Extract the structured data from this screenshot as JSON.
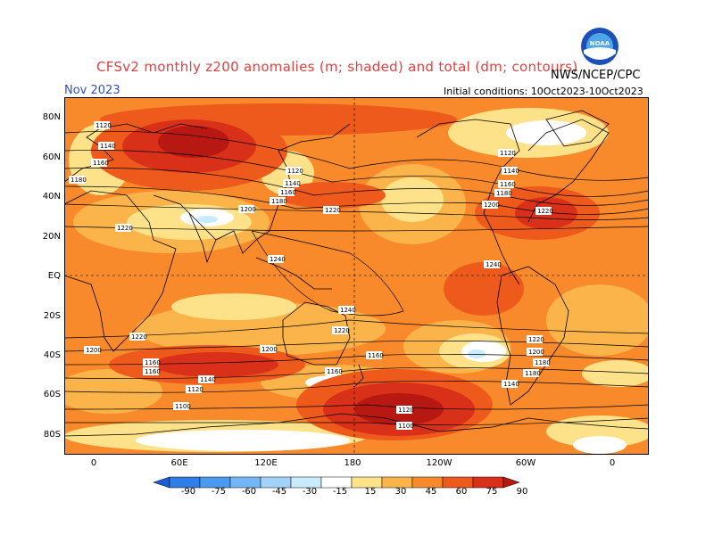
{
  "title": "CFSv2 monthly z200 anomalies (m; shaded) and total (dm; contours)",
  "agency": "NWS/NCEP/CPC",
  "logo_text": "NOAA",
  "forecast_month": "Nov 2023",
  "initial_conditions": "Initial conditions: 10Oct2023-10Oct2023",
  "y_axis_labels": [
    "80N",
    "60N",
    "40N",
    "20N",
    "EQ",
    "20S",
    "40S",
    "60S",
    "80S"
  ],
  "x_axis_labels": [
    "0",
    "60E",
    "120E",
    "180",
    "120W",
    "60W",
    "0"
  ],
  "colorbar": {
    "labels": [
      "-90",
      "-75",
      "-60",
      "-45",
      "-30",
      "-15",
      "15",
      "30",
      "45",
      "60",
      "75",
      "90"
    ],
    "colors": [
      "#1a5fd6",
      "#2f7ee8",
      "#4a9af0",
      "#73b5f5",
      "#a2d2fa",
      "#c9ecfc",
      "#ffffff",
      "#fde28a",
      "#fbb44a",
      "#f98a2b",
      "#ee5a1c",
      "#d9301a",
      "#b81812"
    ]
  },
  "contour_labels": [
    "1120",
    "1140",
    "1160",
    "1180",
    "1200",
    "1220",
    "1240",
    "1100"
  ],
  "colors": {
    "title": "#e04040",
    "date": "#3050c0"
  }
}
